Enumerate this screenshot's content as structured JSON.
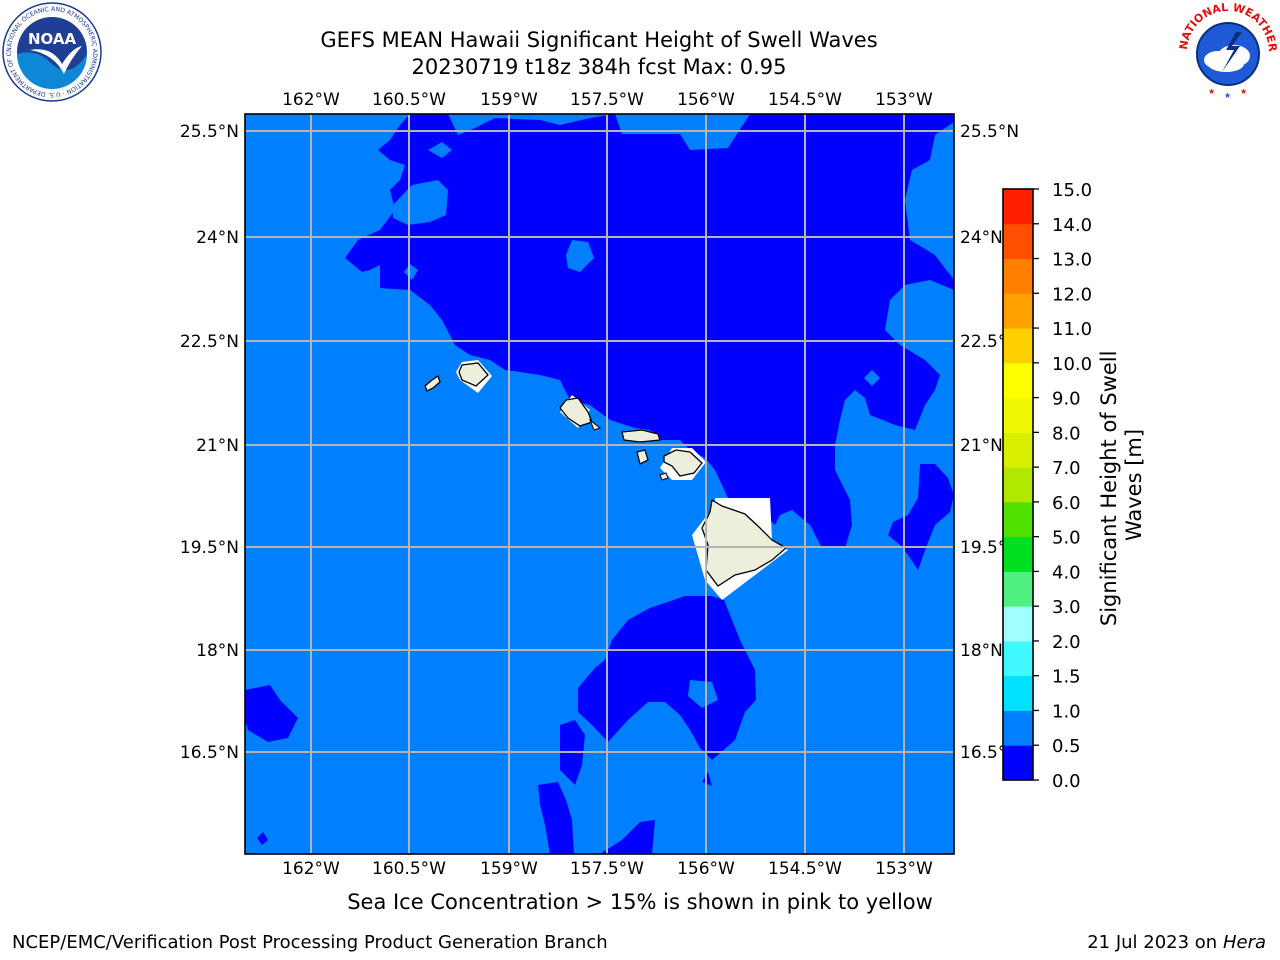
{
  "title": {
    "line1": "GEFS MEAN Hawaii Significant Height of Swell Waves",
    "line2": "20230719 t18z 384h fcst   Max: 0.95"
  },
  "map": {
    "lon_ticks": [
      "162°W",
      "160.5°W",
      "159°W",
      "157.5°W",
      "156°W",
      "154.5°W",
      "153°W"
    ],
    "lat_ticks": [
      "25.5°N",
      "24°N",
      "22.5°N",
      "21°N",
      "19.5°N",
      "18°N",
      "16.5°N"
    ],
    "grid": true,
    "colors": {
      "ocean_0_0_5": "#0000ff",
      "ocean_0_5_1_0": "#0080ff",
      "land": "#eeeedd",
      "mask": "#ffffff"
    }
  },
  "colorbar": {
    "label": "Significant Height of Swell Waves [m]",
    "label_lines": [
      "Significant Height of Swell",
      "Waves [m]"
    ],
    "ticks": [
      "15.0",
      "14.0",
      "13.0",
      "12.0",
      "11.0",
      "10.0",
      "9.0",
      "8.0",
      "7.0",
      "6.0",
      "5.0",
      "4.0",
      "3.0",
      "2.0",
      "1.5",
      "1.0",
      "0.5",
      "0.0"
    ],
    "bins": [
      {
        "min": 0.0,
        "max": 0.5,
        "color": "#0000ff"
      },
      {
        "min": 0.5,
        "max": 1.0,
        "color": "#0080ff"
      },
      {
        "min": 1.0,
        "max": 1.5,
        "color": "#00e0ff"
      },
      {
        "min": 1.5,
        "max": 2.0,
        "color": "#40f8ff"
      },
      {
        "min": 2.0,
        "max": 3.0,
        "color": "#a0ffff"
      },
      {
        "min": 3.0,
        "max": 4.0,
        "color": "#50f080"
      },
      {
        "min": 4.0,
        "max": 5.0,
        "color": "#00e020"
      },
      {
        "min": 5.0,
        "max": 6.0,
        "color": "#50e000"
      },
      {
        "min": 6.0,
        "max": 7.0,
        "color": "#b0e800"
      },
      {
        "min": 7.0,
        "max": 8.0,
        "color": "#d8f000"
      },
      {
        "min": 8.0,
        "max": 9.0,
        "color": "#f0f800"
      },
      {
        "min": 9.0,
        "max": 10.0,
        "color": "#ffff00"
      },
      {
        "min": 10.0,
        "max": 11.0,
        "color": "#ffd000"
      },
      {
        "min": 11.0,
        "max": 12.0,
        "color": "#ffa000"
      },
      {
        "min": 12.0,
        "max": 13.0,
        "color": "#ff8000"
      },
      {
        "min": 13.0,
        "max": 14.0,
        "color": "#ff5000"
      },
      {
        "min": 14.0,
        "max": 15.0,
        "color": "#ff2000"
      }
    ]
  },
  "caption": "Sea Ice Concentration > 15% is shown in pink to yellow",
  "footer": {
    "left": "NCEP/EMC/Verification Post Processing Product Generation Branch",
    "right_date": "21 Jul 2023 on",
    "right_host": "Hera"
  },
  "logos": {
    "noaa_text": "NOAA",
    "noaa_ring_text": "NATIONAL OCEANIC AND ATMOSPHERIC ADMINISTRATION · U.S. DEPARTMENT OF COMMERCE",
    "nws_ring_text": "NATIONAL WEATHER SERVICE"
  }
}
